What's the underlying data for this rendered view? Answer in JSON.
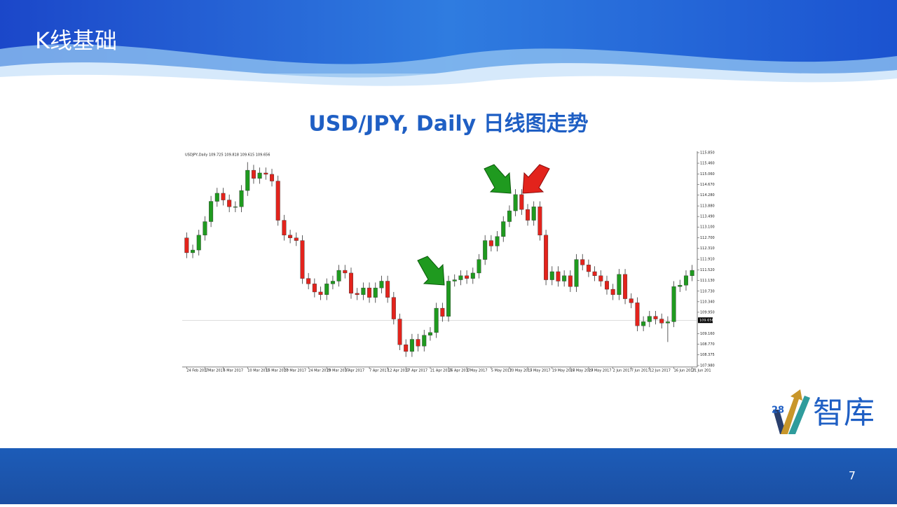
{
  "slide": {
    "title": "K线基础",
    "page_number": "7",
    "logo": {
      "number": "28",
      "text": "智库"
    }
  },
  "chart_data": {
    "type": "candlestick",
    "title": "USD/JPY, Daily  日线图走势",
    "legend_text": "USDJPY,Daily 109.725 109.818 109.615 109.656",
    "up_color": "#1f9a1f",
    "down_color": "#e3231c",
    "categories": [
      "24 Feb 2017",
      null,
      null,
      "1 Mar 2017",
      null,
      null,
      "6 Mar 2017",
      null,
      null,
      null,
      "10 Mar 2017",
      null,
      null,
      "15 Mar 2017",
      null,
      null,
      "20 Mar 2017",
      null,
      null,
      null,
      "24 Mar 2017",
      null,
      null,
      "29 Mar 2017",
      null,
      null,
      "3 Apr 2017",
      null,
      null,
      null,
      "7 Apr 2017",
      null,
      null,
      "12 Apr 2017",
      null,
      null,
      "17 Apr 2017",
      null,
      null,
      null,
      "21 Apr 2017",
      null,
      null,
      "26 Apr 2017",
      null,
      null,
      "1 May 2017",
      null,
      null,
      null,
      "5 May 2017",
      null,
      null,
      "10 May 2017",
      null,
      null,
      "15 May 2017",
      null,
      null,
      null,
      "19 May 2017",
      null,
      null,
      "24 May 2017",
      null,
      null,
      "29 May 2017",
      null,
      null,
      null,
      "2 Jun 2017",
      null,
      null,
      "7 Jun 2017",
      null,
      null,
      "12 Jun 2017",
      null,
      null,
      null,
      "16 Jun 2017",
      null,
      null,
      "21 Jun 201"
    ],
    "open": [
      112.7,
      112.15,
      112.25,
      112.8,
      113.3,
      114.05,
      114.35,
      114.1,
      113.85,
      113.85,
      114.45,
      115.2,
      114.9,
      115.1,
      115.05,
      114.8,
      113.35,
      112.8,
      112.7,
      112.6,
      111.2,
      111.0,
      110.7,
      110.6,
      111.0,
      111.1,
      111.5,
      111.4,
      110.65,
      110.6,
      110.85,
      110.5,
      110.85,
      111.1,
      110.5,
      109.7,
      108.75,
      108.5,
      108.95,
      108.7,
      109.1,
      109.2,
      110.1,
      109.8,
      111.1,
      111.15,
      111.3,
      111.2,
      111.4,
      111.9,
      112.6,
      112.4,
      112.75,
      113.3,
      113.7,
      114.3,
      113.75,
      113.35,
      113.85,
      112.8,
      111.15,
      111.45,
      111.1,
      111.3,
      110.9,
      111.9,
      111.7,
      111.45,
      111.3,
      111.1,
      110.8,
      110.6,
      111.35,
      110.45,
      110.3,
      109.45,
      109.6,
      109.8,
      109.7,
      109.55,
      109.6,
      110.9,
      110.95,
      111.3
    ],
    "high": [
      112.9,
      112.45,
      113.0,
      113.5,
      114.25,
      114.55,
      114.55,
      114.3,
      114.05,
      114.65,
      115.5,
      115.4,
      115.3,
      115.3,
      115.25,
      115.0,
      113.55,
      113.0,
      112.9,
      112.8,
      111.4,
      111.2,
      110.9,
      111.2,
      111.3,
      111.7,
      111.7,
      111.6,
      110.85,
      111.05,
      111.05,
      111.05,
      111.3,
      111.3,
      110.7,
      109.9,
      108.95,
      109.15,
      109.15,
      109.3,
      109.4,
      110.3,
      110.3,
      111.3,
      111.35,
      111.5,
      111.5,
      111.6,
      112.1,
      112.8,
      112.8,
      112.95,
      113.5,
      113.9,
      114.5,
      114.5,
      113.95,
      114.05,
      114.05,
      113.0,
      111.65,
      111.65,
      111.5,
      111.5,
      112.1,
      112.1,
      111.9,
      111.65,
      111.5,
      111.3,
      111.0,
      111.55,
      111.55,
      110.65,
      110.5,
      109.8,
      110.0,
      110.0,
      109.9,
      109.8,
      111.1,
      111.15,
      111.5,
      111.7
    ],
    "low": [
      111.95,
      111.95,
      112.05,
      112.6,
      113.1,
      113.85,
      113.9,
      113.65,
      113.65,
      113.65,
      114.25,
      114.7,
      114.7,
      114.85,
      114.6,
      113.15,
      112.6,
      112.5,
      112.4,
      111.0,
      110.8,
      110.5,
      110.4,
      110.4,
      110.8,
      110.9,
      111.2,
      110.45,
      110.4,
      110.4,
      110.3,
      110.3,
      110.65,
      110.3,
      109.5,
      108.55,
      108.3,
      108.3,
      108.5,
      108.5,
      108.9,
      109.0,
      109.6,
      109.6,
      110.9,
      110.95,
      111.0,
      111.0,
      111.2,
      111.7,
      112.2,
      112.2,
      112.55,
      113.1,
      113.5,
      113.55,
      113.15,
      113.15,
      112.6,
      110.95,
      110.95,
      110.9,
      110.9,
      110.7,
      110.7,
      111.5,
      111.25,
      111.1,
      110.9,
      110.6,
      110.4,
      110.4,
      110.25,
      110.1,
      109.25,
      109.25,
      109.4,
      109.5,
      109.35,
      108.85,
      109.4,
      110.7,
      110.75,
      111.1
    ],
    "close": [
      112.15,
      112.25,
      112.8,
      113.3,
      114.05,
      114.35,
      114.1,
      113.85,
      113.85,
      114.45,
      115.2,
      114.9,
      115.1,
      115.05,
      114.8,
      113.35,
      112.8,
      112.7,
      112.6,
      111.2,
      111.0,
      110.7,
      110.6,
      111.0,
      111.1,
      111.5,
      111.4,
      110.65,
      110.6,
      110.85,
      110.5,
      110.85,
      111.1,
      110.5,
      109.7,
      108.75,
      108.5,
      108.95,
      108.7,
      109.1,
      109.2,
      110.1,
      109.8,
      111.1,
      111.15,
      111.3,
      111.2,
      111.4,
      111.9,
      112.6,
      112.4,
      112.75,
      113.3,
      113.7,
      114.3,
      113.75,
      113.35,
      113.85,
      112.8,
      111.15,
      111.45,
      111.1,
      111.3,
      110.9,
      111.9,
      111.7,
      111.45,
      111.3,
      111.1,
      110.8,
      110.6,
      111.35,
      110.45,
      110.3,
      109.45,
      109.6,
      109.8,
      109.7,
      109.55,
      109.6,
      110.9,
      110.95,
      111.3,
      111.5
    ],
    "ylim": [
      107.98,
      115.85
    ],
    "yticks": [
      {
        "value": 115.85,
        "label": "115.850"
      },
      {
        "value": 115.46,
        "label": "115.460"
      },
      {
        "value": 115.06,
        "label": "115.060"
      },
      {
        "value": 114.67,
        "label": "114.670"
      },
      {
        "value": 114.28,
        "label": "114.280"
      },
      {
        "value": 113.88,
        "label": "113.880"
      },
      {
        "value": 113.49,
        "label": "113.490"
      },
      {
        "value": 113.1,
        "label": "113.100"
      },
      {
        "value": 112.7,
        "label": "112.700"
      },
      {
        "value": 112.31,
        "label": "112.310"
      },
      {
        "value": 111.91,
        "label": "111.910"
      },
      {
        "value": 111.52,
        "label": "111.520"
      },
      {
        "value": 111.13,
        "label": "111.130"
      },
      {
        "value": 110.73,
        "label": "110.730"
      },
      {
        "value": 110.34,
        "label": "110.340"
      },
      {
        "value": 109.95,
        "label": "109.950"
      },
      {
        "value": 109.16,
        "label": "109.160"
      },
      {
        "value": 108.77,
        "label": "108.770"
      },
      {
        "value": 108.375,
        "label": "108.375"
      },
      {
        "value": 107.98,
        "label": "107.980"
      }
    ],
    "current_price": {
      "value": 109.656,
      "label": "109.656"
    }
  }
}
